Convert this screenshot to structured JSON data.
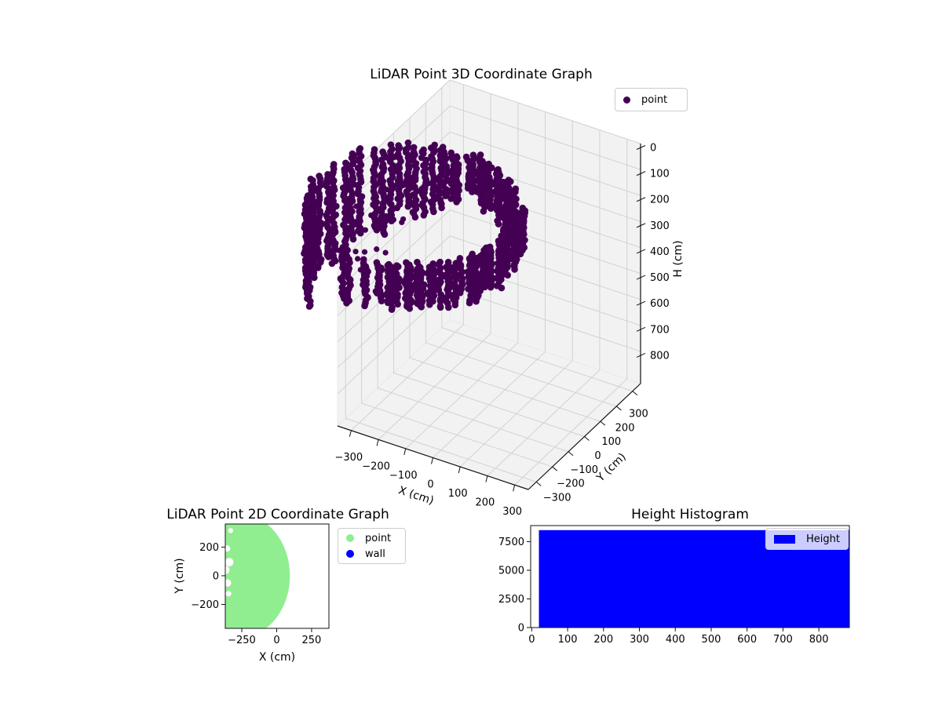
{
  "figure": {
    "background": "#ffffff"
  },
  "chart_data": [
    {
      "id": "lidar_3d_scatter",
      "type": "scatter",
      "projection": "3d",
      "title": "LiDAR Point 3D Coordinate Graph",
      "xlabel": "X (cm)",
      "ylabel": "Y (cm)",
      "zlabel": "H (cm)",
      "xlim": [
        -350,
        350
      ],
      "ylim": [
        -350,
        350
      ],
      "zlim": [
        0,
        924
      ],
      "zaxis_inverted": true,
      "xticks": [
        -300,
        -200,
        -100,
        0,
        100,
        200,
        300
      ],
      "yticks": [
        -300,
        -200,
        -100,
        0,
        100,
        200,
        300
      ],
      "zticks": [
        0,
        100,
        200,
        300,
        400,
        500,
        600,
        700,
        800
      ],
      "grid": true,
      "pane_color": "#f2f2f2",
      "grid_color": "#d2d2d2",
      "legend": {
        "position": "upper right",
        "items": [
          {
            "label": "point",
            "marker": "circle",
            "color": "#440154"
          }
        ]
      },
      "marker": {
        "color": "#440154",
        "radius_px": 4.3
      },
      "point_cloud": {
        "shape": "hollow cylindrical shell of LiDAR wall returns, overflowing the left axis bound",
        "center_x_cm": -290,
        "center_y_cm": 0,
        "radius_cm": 340,
        "radius_jitter_cm": 22,
        "h_top_cm": 265,
        "h_bottom_cm": 420,
        "h_bottom_left_extra_cm": 210,
        "h_step_cm": 11,
        "azim_step_dense_deg": 3.2,
        "azim_step_mid_deg": 4.4,
        "azim_step_sparse_deg": 6.6,
        "mid_arc_start_deg": 95,
        "sparse_arc_deg": [
          138,
          268
        ],
        "sparse_skip_prob": 0.32,
        "interior_dots": 46,
        "seed": 11
      }
    },
    {
      "id": "lidar_2d_scatter",
      "type": "scatter",
      "title": "LiDAR Point 2D Coordinate Graph",
      "xlabel": "X (cm)",
      "ylabel": "Y (cm)",
      "xlim": [
        -368,
        374
      ],
      "ylim": [
        -367,
        361
      ],
      "xticks": [
        -250,
        0,
        250
      ],
      "yticks": [
        -200,
        0,
        200
      ],
      "legend": {
        "position": "outside upper right",
        "items": [
          {
            "label": "point",
            "marker": "circle",
            "color": "#90ee90"
          },
          {
            "label": "wall",
            "marker": "circle",
            "color": "#0000ff"
          }
        ]
      },
      "point_region": {
        "description": "dense disk of LiDAR point returns, clipped at left axis edge",
        "center_x_cm": -265,
        "center_y_cm": 0,
        "radius_x_cm": 360,
        "radius_y_cm": 430,
        "color": "#90ee90",
        "gaps": [
          {
            "x": -330,
            "y": 315,
            "r": 18
          },
          {
            "x": -355,
            "y": 190,
            "r": 22
          },
          {
            "x": -340,
            "y": 95,
            "r": 30
          },
          {
            "x": -368,
            "y": 40,
            "r": 30
          },
          {
            "x": -352,
            "y": -50,
            "r": 26
          },
          {
            "x": -345,
            "y": -125,
            "r": 20
          }
        ]
      }
    },
    {
      "id": "height_histogram",
      "type": "histogram",
      "title": "Height Histogram",
      "xlim": [
        -3,
        885
      ],
      "ylim": [
        0,
        8900
      ],
      "xticks": [
        0,
        100,
        200,
        300,
        400,
        500,
        600,
        700,
        800
      ],
      "yticks": [
        0,
        2500,
        5000,
        7500
      ],
      "legend": {
        "position": "upper right",
        "items": [
          {
            "label": "Height",
            "marker": "square",
            "color": "#0000ff"
          }
        ]
      },
      "bar_color": "#0000ff",
      "bars": [
        {
          "x_start": 20,
          "x_end": 885,
          "count": 8500
        }
      ]
    }
  ]
}
